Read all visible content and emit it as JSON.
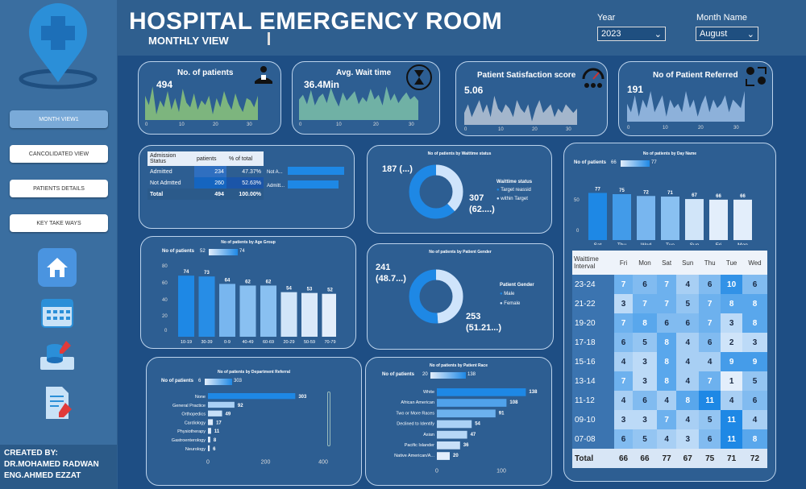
{
  "sidebar": {
    "nav": [
      "MONTH VIEW1",
      "CANCOLIDATED VIEW",
      "PATIENTS DETAILS",
      "KEY TAKE WAYS"
    ],
    "icons": [
      "home-icon",
      "calendar-icon",
      "database-icon",
      "report-icon"
    ],
    "credit": {
      "created_by": "CREATED BY:",
      "author1": "DR.MOHAMED RADWAN",
      "author2": "ENG.AHMED EZZAT"
    }
  },
  "header": {
    "title": "HOSPITAL EMERGENCY ROOM",
    "subtitle": "MONTHLY VIEW",
    "year_label": "Year",
    "year_value": "2023",
    "month_label": "Month Name",
    "month_value": "August"
  },
  "kpis": [
    {
      "title": "No. of patients",
      "value": "494",
      "color": "#8cc47a",
      "values": [
        14,
        10,
        18,
        6,
        12,
        9,
        16,
        8,
        13,
        7,
        17,
        11,
        9,
        15,
        8,
        12,
        10,
        14,
        6,
        13,
        9,
        16,
        11,
        8,
        15,
        10,
        7,
        13,
        12,
        9,
        14
      ]
    },
    {
      "title": "Avg. Wait time",
      "value": "36.4Min",
      "color": "#7cbfa8",
      "values": [
        34,
        38,
        30,
        42,
        29,
        36,
        39,
        31,
        44,
        35,
        28,
        40,
        33,
        37,
        41,
        30,
        36,
        32,
        43,
        34,
        38,
        29,
        45,
        33,
        39,
        31,
        36,
        40,
        34,
        37,
        33
      ]
    },
    {
      "title": "Patient Satisfaction score",
      "value": "5.06",
      "color": "#b9c6d6",
      "values": [
        4,
        6,
        3,
        5,
        7,
        4,
        6,
        3,
        8,
        5,
        4,
        6,
        5,
        3,
        7,
        5,
        4,
        6,
        2,
        5,
        7,
        4,
        5,
        6,
        3,
        5,
        4,
        6,
        5,
        4,
        5
      ]
    },
    {
      "title": "No of Patient Referred",
      "value": "191",
      "color": "#9fc0e6",
      "values": [
        6,
        4,
        8,
        3,
        7,
        5,
        9,
        4,
        6,
        8,
        3,
        7,
        5,
        6,
        4,
        9,
        5,
        7,
        3,
        6,
        8,
        4,
        7,
        5,
        6,
        8,
        4,
        7,
        6,
        5,
        9
      ]
    }
  ],
  "kpi_ticks": [
    "0",
    "10",
    "20",
    "30"
  ],
  "admission": {
    "headers": [
      "Admission Status",
      "patients",
      "% of total"
    ],
    "rows": [
      [
        "Admitted",
        "234",
        "47.37%"
      ],
      [
        "Not Admtted",
        "260",
        "52.63%"
      ],
      [
        "Total",
        "494",
        "100.00%"
      ]
    ],
    "bar_labels": [
      "Not A...",
      "Admitt..."
    ],
    "bar_values": [
      260,
      234
    ]
  },
  "waitstatus": {
    "title": "No of patients by Waittime status",
    "legend_title": "Waittime status",
    "legend": [
      "Target reassid",
      "within Target"
    ],
    "label1": "187 (...)",
    "label2a": "307",
    "label2b": "(62....)",
    "values": [
      187,
      307
    ]
  },
  "gender": {
    "title": "No of patients by Patient Gender",
    "legend_title": "Patient Gender",
    "legend": [
      "Male",
      "Female"
    ],
    "label1a": "241",
    "label1b": "(48.7...)",
    "label2a": "253",
    "label2b": "(51.21...)",
    "values": [
      241,
      253
    ]
  },
  "day": {
    "title": "No of patients by Day Name",
    "legend_label": "No of patients",
    "min": "66",
    "max": "77",
    "categories": [
      "Sat",
      "Thu",
      "Wed",
      "Tue",
      "Sun",
      "Fri",
      "Mon"
    ],
    "values": [
      77,
      75,
      72,
      71,
      67,
      66,
      66
    ],
    "ticks": [
      "50",
      "0"
    ]
  },
  "age": {
    "title": "No of patients by Age Group",
    "legend_label": "No of patients",
    "min": "52",
    "max": "74",
    "categories": [
      "10-19",
      "30-39",
      "0-9",
      "40-49",
      "60-69",
      "20-29",
      "50-59",
      "70-79"
    ],
    "values": [
      74,
      73,
      64,
      62,
      62,
      54,
      53,
      52
    ],
    "ticks": [
      "80",
      "60",
      "40",
      "20",
      "0"
    ]
  },
  "dept": {
    "title": "No of patients by Department Referral",
    "legend_label": "No of patients",
    "min": "6",
    "max": "303",
    "categories": [
      "None",
      "General Practice",
      "Orthopedics",
      "Cardiology",
      "Physiotherapy",
      "Gastroenterology",
      "Neurology"
    ],
    "values": [
      303,
      92,
      49,
      17,
      11,
      8,
      6
    ],
    "ticks": [
      "0",
      "200",
      "400"
    ]
  },
  "race": {
    "title": "No of patients by Patient Race",
    "legend_label": "No of patients",
    "min": "20",
    "max": "138",
    "categories": [
      "White",
      "African American",
      "Two or More Races",
      "Declined to Identify",
      "Asian",
      "Pacific Islander",
      "Native American/A..."
    ],
    "values": [
      138,
      108,
      91,
      54,
      47,
      36,
      20
    ],
    "ticks": [
      "0",
      "100"
    ]
  },
  "heatmap": {
    "header": [
      "Waittime Interval",
      "Fri",
      "Mon",
      "Sat",
      "Sun",
      "Thu",
      "Tue",
      "Wed"
    ],
    "rows": [
      [
        "23-24",
        "7",
        "6",
        "7",
        "4",
        "6",
        "10",
        "6"
      ],
      [
        "21-22",
        "3",
        "7",
        "7",
        "5",
        "7",
        "8",
        "8"
      ],
      [
        "19-20",
        "7",
        "8",
        "6",
        "6",
        "7",
        "3",
        "8"
      ],
      [
        "17-18",
        "6",
        "5",
        "8",
        "4",
        "6",
        "2",
        "3"
      ],
      [
        "15-16",
        "4",
        "3",
        "8",
        "4",
        "4",
        "9",
        "9"
      ],
      [
        "13-14",
        "7",
        "3",
        "8",
        "4",
        "7",
        "1",
        "5"
      ],
      [
        "11-12",
        "4",
        "6",
        "4",
        "8",
        "11",
        "4",
        "6"
      ],
      [
        "09-10",
        "3",
        "3",
        "7",
        "4",
        "5",
        "11",
        "4"
      ],
      [
        "07-08",
        "6",
        "5",
        "4",
        "3",
        "6",
        "11",
        "8"
      ],
      [
        "Total",
        "66",
        "66",
        "77",
        "67",
        "75",
        "71",
        "72"
      ]
    ]
  }
}
